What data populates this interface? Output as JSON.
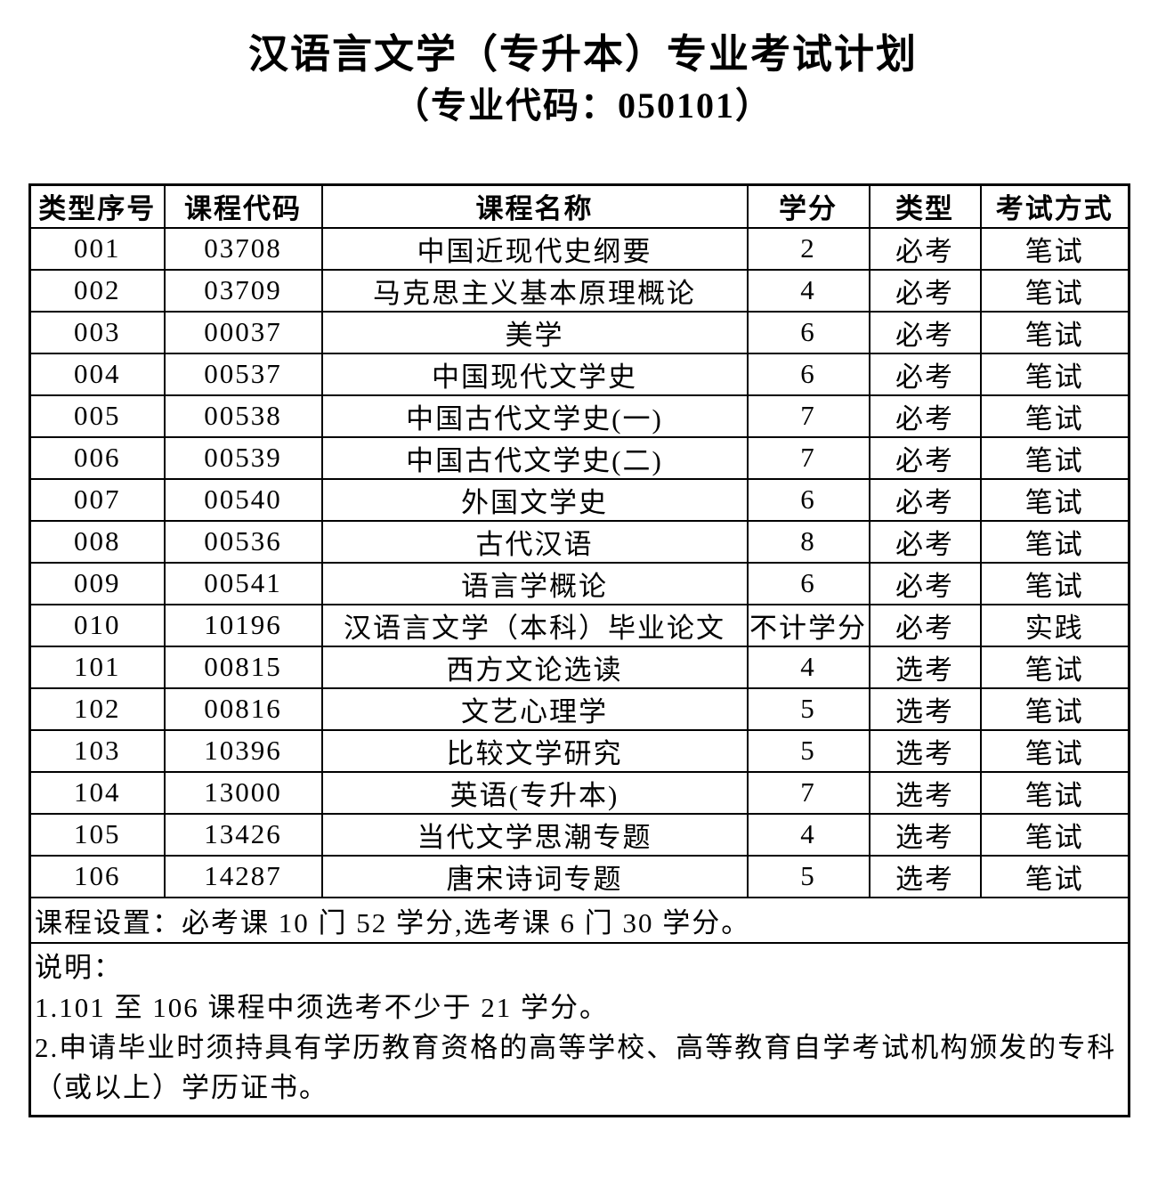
{
  "title": "汉语言文学（专升本）专业考试计划",
  "subtitle": "（专业代码：050101）",
  "colors": {
    "text": "#000000",
    "background": "#ffffff",
    "border": "#000000"
  },
  "table": {
    "headers": [
      "类型序号",
      "课程代码",
      "课程名称",
      "学分",
      "类型",
      "考试方式"
    ],
    "rows": [
      [
        "001",
        "03708",
        "中国近现代史纲要",
        "2",
        "必考",
        "笔试"
      ],
      [
        "002",
        "03709",
        "马克思主义基本原理概论",
        "4",
        "必考",
        "笔试"
      ],
      [
        "003",
        "00037",
        "美学",
        "6",
        "必考",
        "笔试"
      ],
      [
        "004",
        "00537",
        "中国现代文学史",
        "6",
        "必考",
        "笔试"
      ],
      [
        "005",
        "00538",
        "中国古代文学史(一)",
        "7",
        "必考",
        "笔试"
      ],
      [
        "006",
        "00539",
        "中国古代文学史(二)",
        "7",
        "必考",
        "笔试"
      ],
      [
        "007",
        "00540",
        "外国文学史",
        "6",
        "必考",
        "笔试"
      ],
      [
        "008",
        "00536",
        "古代汉语",
        "8",
        "必考",
        "笔试"
      ],
      [
        "009",
        "00541",
        "语言学概论",
        "6",
        "必考",
        "笔试"
      ],
      [
        "010",
        "10196",
        "汉语言文学（本科）毕业论文",
        "不计学分",
        "必考",
        "实践"
      ],
      [
        "101",
        "00815",
        "西方文论选读",
        "4",
        "选考",
        "笔试"
      ],
      [
        "102",
        "00816",
        "文艺心理学",
        "5",
        "选考",
        "笔试"
      ],
      [
        "103",
        "10396",
        "比较文学研究",
        "5",
        "选考",
        "笔试"
      ],
      [
        "104",
        "13000",
        "英语(专升本)",
        "7",
        "选考",
        "笔试"
      ],
      [
        "105",
        "13426",
        "当代文学思潮专题",
        "4",
        "选考",
        "笔试"
      ],
      [
        "106",
        "14287",
        "唐宋诗词专题",
        "5",
        "选考",
        "笔试"
      ]
    ]
  },
  "summary": "课程设置：必考课 10 门 52 学分,选考课 6 门 30 学分。",
  "notes": {
    "heading": "说明：",
    "items": [
      "1.101 至 106 课程中须选考不少于 21 学分。",
      "2.申请毕业时须持具有学历教育资格的高等学校、高等教育自学考试机构颁发的专科（或以上）学历证书。"
    ]
  }
}
